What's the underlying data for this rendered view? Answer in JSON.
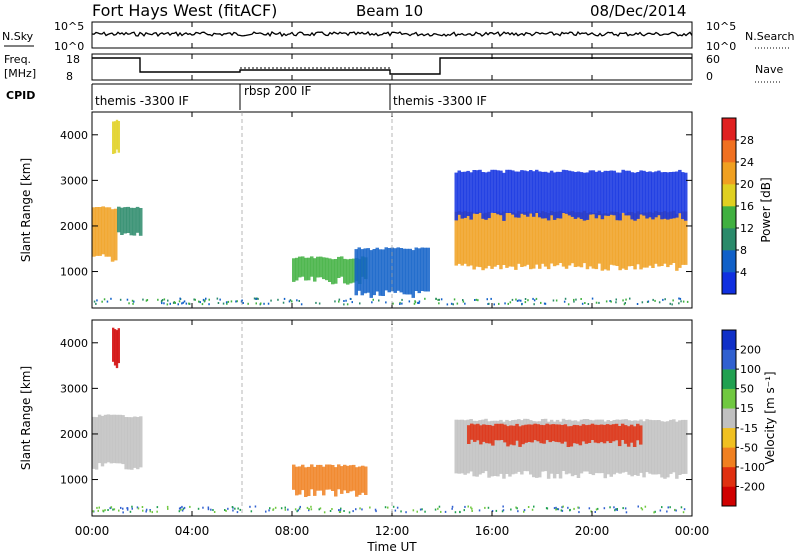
{
  "header": {
    "station": "Fort Hays West (fitACF)",
    "beam": "Beam 10",
    "date": "08/Dec/2014"
  },
  "nsky_panel": {
    "left_label": "N.Sky",
    "left_ticks": [
      "10^5",
      "10^0"
    ],
    "right_label": "N.Search",
    "right_ticks": [
      "10^5",
      "10^0"
    ]
  },
  "freq_panel": {
    "left_label_line1": "Freq.",
    "left_label_line2": "[MHz]",
    "left_ticks": [
      "18",
      "8"
    ],
    "right_label": "Nave",
    "right_ticks": [
      "60",
      "0"
    ]
  },
  "cpid": {
    "label": "CPID",
    "segments": [
      {
        "name": "themis -3300 IF",
        "start_hour": 0,
        "end_hour": 6
      },
      {
        "name": "rbsp 200 IF",
        "start_hour": 6,
        "end_hour": 12
      },
      {
        "name": "themis -3300 IF",
        "start_hour": 12,
        "end_hour": 24
      }
    ]
  },
  "x_axis": {
    "title": "Time UT",
    "ticks": [
      "00:00",
      "04:00",
      "08:00",
      "12:00",
      "16:00",
      "20:00",
      "00:00"
    ]
  },
  "power_panel": {
    "y_title": "Slant Range [km]",
    "y_ticks": [
      "1000",
      "2000",
      "3000",
      "4000"
    ],
    "colorbar_title": "Power [dB]",
    "colorbar_labels": [
      "4",
      "8",
      "12",
      "16",
      "20",
      "24",
      "28"
    ],
    "colors": [
      "#1030e0",
      "#1060c8",
      "#2a8a6a",
      "#40b040",
      "#e0d020",
      "#f0a020",
      "#f07020",
      "#e02020"
    ]
  },
  "velocity_panel": {
    "y_title": "Slant Range [km]",
    "y_ticks": [
      "1000",
      "2000",
      "3000",
      "4000"
    ],
    "colorbar_title": "Velocity [m s⁻¹]",
    "colorbar_labels": [
      "200",
      "100",
      "50",
      "15",
      "-15",
      "-50",
      "-100",
      "-200"
    ],
    "colors": [
      "#1030c8",
      "#3060d0",
      "#20a050",
      "#70c840",
      "#c0c0c0",
      "#f0c020",
      "#f08020",
      "#e03010",
      "#d00000"
    ]
  },
  "chart_data": {
    "type": "heatmap",
    "x_unit": "hours UT",
    "xlim": [
      0,
      24
    ],
    "ylim": [
      200,
      4500
    ],
    "power_regions": [
      {
        "t0": 0.0,
        "t1": 1.0,
        "r0": 1300,
        "r1": 2400,
        "level": 5
      },
      {
        "t0": 0.8,
        "t1": 1.1,
        "r0": 3600,
        "r1": 4300,
        "level": 4
      },
      {
        "t0": 1.0,
        "t1": 2.0,
        "r0": 1800,
        "r1": 2400,
        "level": 2
      },
      {
        "t0": 8.0,
        "t1": 11.0,
        "r0": 800,
        "r1": 1300,
        "level": 3
      },
      {
        "t0": 10.5,
        "t1": 13.5,
        "r0": 500,
        "r1": 1500,
        "level": 1
      },
      {
        "t0": 14.5,
        "t1": 23.8,
        "r0": 1100,
        "r1": 2300,
        "level": 5
      },
      {
        "t0": 14.5,
        "t1": 23.8,
        "r0": 2200,
        "r1": 3200,
        "level": 0
      }
    ],
    "velocity_regions": [
      {
        "t0": 0.0,
        "t1": 2.0,
        "r0": 1300,
        "r1": 2400,
        "level": 4
      },
      {
        "t0": 0.8,
        "t1": 1.1,
        "r0": 3500,
        "r1": 4300,
        "level": 8
      },
      {
        "t0": 8.0,
        "t1": 11.0,
        "r0": 700,
        "r1": 1300,
        "level": 6
      },
      {
        "t0": 14.5,
        "t1": 23.8,
        "r0": 1100,
        "r1": 2300,
        "level": 4
      },
      {
        "t0": 15.0,
        "t1": 22.0,
        "r0": 1800,
        "r1": 2200,
        "level": 7
      }
    ]
  }
}
